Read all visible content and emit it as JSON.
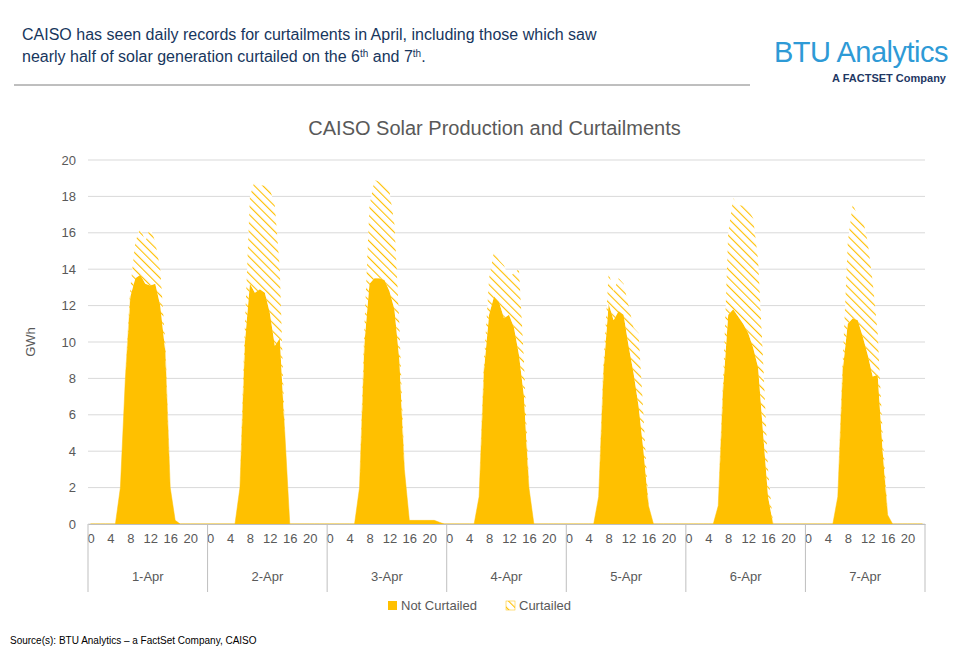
{
  "chart_data": {
    "type": "area",
    "stacked": true,
    "grid": true,
    "legend": "bottom",
    "header": [
      "CAISO has seen daily records for curtailments in April, including those which saw",
      "nearly half of solar generation curtailed on the 6th and 7th."
    ],
    "logo": {
      "text": "BTU Analytics",
      "tagline": "A FACTSET Company"
    },
    "title": "CAISO Solar Production and Curtailments",
    "y_label": "GWh",
    "source": "Source(s): BTU Analytics – a FactSet Company, CAISO",
    "ylim": [
      0,
      20
    ],
    "yticks": [
      0,
      2,
      4,
      6,
      8,
      10,
      12,
      14,
      16,
      18,
      20
    ],
    "groups": [
      "1-Apr",
      "2-Apr",
      "3-Apr",
      "4-Apr",
      "5-Apr",
      "6-Apr",
      "7-Apr"
    ],
    "categories": [
      "0",
      null,
      null,
      null,
      "4",
      null,
      null,
      null,
      "8",
      null,
      null,
      null,
      "12",
      null,
      null,
      null,
      "16",
      null,
      null,
      null,
      "20",
      null,
      null,
      null,
      "0",
      null,
      null,
      null,
      "4",
      null,
      null,
      null,
      "8",
      null,
      null,
      null,
      "12",
      null,
      null,
      null,
      "16",
      null,
      null,
      null,
      "20",
      null,
      null,
      null,
      "0",
      null,
      null,
      null,
      "4",
      null,
      null,
      null,
      "8",
      null,
      null,
      null,
      "12",
      null,
      null,
      null,
      "16",
      null,
      null,
      null,
      "20",
      null,
      null,
      null,
      "0",
      null,
      null,
      null,
      "4",
      null,
      null,
      null,
      "8",
      null,
      null,
      null,
      "12",
      null,
      null,
      null,
      "16",
      null,
      null,
      null,
      "20",
      null,
      null,
      null,
      "0",
      null,
      null,
      null,
      "4",
      null,
      null,
      null,
      "8",
      null,
      null,
      null,
      "12",
      null,
      null,
      null,
      "16",
      null,
      null,
      null,
      "20",
      null,
      null,
      null,
      "0",
      null,
      null,
      null,
      "4",
      null,
      null,
      null,
      "8",
      null,
      null,
      null,
      "12",
      null,
      null,
      null,
      "16",
      null,
      null,
      null,
      "20",
      null,
      null,
      null,
      "0",
      null,
      null,
      null,
      "4",
      null,
      null,
      null,
      "8",
      null,
      null,
      null,
      "12",
      null,
      null,
      null,
      "16",
      null,
      null,
      null,
      "20",
      null,
      null,
      null
    ],
    "series": [
      {
        "name": "Not Curtailed",
        "color": "#FFC000",
        "values": [
          0,
          0,
          0,
          0,
          0,
          0,
          2,
          8,
          12.5,
          13.5,
          13.7,
          13.2,
          13.1,
          13.2,
          12,
          9.5,
          2,
          0.2,
          0,
          0,
          0,
          0,
          0,
          0,
          0,
          0,
          0,
          0,
          0,
          0,
          2,
          10,
          13.2,
          12.7,
          12.9,
          12.7,
          11.6,
          9.8,
          10.2,
          5,
          0,
          0,
          0,
          0,
          0,
          0,
          0,
          0,
          0,
          0,
          0,
          0,
          0,
          0,
          2,
          10,
          13.2,
          13.5,
          13.5,
          13.4,
          12.8,
          11.8,
          9,
          3,
          0.2,
          0.2,
          0.2,
          0.2,
          0.2,
          0.2,
          0.1,
          0,
          0,
          0,
          0,
          0,
          0,
          0,
          1.5,
          8.5,
          11.5,
          12.5,
          12.2,
          11.3,
          11.5,
          10.8,
          9.3,
          7,
          2,
          0,
          0,
          0,
          0,
          0,
          0,
          0,
          0,
          0,
          0,
          0,
          0,
          0,
          1.5,
          8.5,
          12.1,
          11.2,
          11.7,
          11.5,
          9.8,
          8.3,
          6.5,
          4,
          1,
          0,
          0,
          0,
          0,
          0,
          0,
          0,
          0,
          0,
          0,
          0,
          0,
          0,
          1,
          7.5,
          11.5,
          11.8,
          11.4,
          11,
          10.5,
          9.7,
          8.6,
          5,
          1.5,
          0,
          0,
          0,
          0,
          0,
          0,
          0,
          0,
          0,
          0,
          0,
          0,
          0,
          1.5,
          8.5,
          11,
          11.3,
          11.2,
          10.3,
          9.3,
          8.1,
          8.2,
          4,
          0.5,
          0,
          0,
          0,
          0,
          0,
          0,
          0
        ]
      },
      {
        "name": "Curtailed",
        "color": "#FFC000",
        "values": [
          0,
          0,
          0,
          0,
          0,
          0,
          0,
          0,
          0.5,
          2,
          2.6,
          2.3,
          3.2,
          2.3,
          2,
          0.5,
          0,
          0,
          0,
          0,
          0,
          0,
          0,
          0,
          0,
          0,
          0,
          0,
          0,
          0,
          0,
          1,
          4.8,
          6.2,
          5.7,
          5.9,
          6.8,
          7.7,
          3.8,
          0,
          0,
          0,
          0,
          0,
          0,
          0,
          0,
          0,
          0,
          0,
          0,
          0,
          0,
          0,
          0,
          1,
          4.3,
          5.4,
          5.3,
          5.3,
          5.5,
          4.7,
          2,
          0,
          0,
          0,
          0,
          0,
          0,
          0,
          0,
          0,
          0,
          0,
          0,
          0,
          0,
          0,
          0,
          0.5,
          2,
          2.5,
          2.3,
          2.9,
          2,
          3,
          4.7,
          2,
          0,
          0,
          0,
          0,
          0,
          0,
          0,
          0,
          0,
          0,
          0,
          0,
          0,
          0,
          0,
          0.5,
          1.7,
          1.6,
          1.8,
          1.7,
          2.2,
          2.5,
          4,
          2,
          0,
          0,
          0,
          0,
          0,
          0,
          0,
          0,
          0,
          0,
          0,
          0,
          0,
          0,
          0,
          0.5,
          4.5,
          6.1,
          6.1,
          6.5,
          6.8,
          7.1,
          5.9,
          4,
          1.5,
          0,
          0,
          0,
          0,
          0,
          0,
          0,
          0,
          0,
          0,
          0,
          0,
          0,
          0,
          0.5,
          4.5,
          6.3,
          5.7,
          6.5,
          6.2,
          5.2,
          2.3,
          1,
          0,
          0,
          0,
          0,
          0,
          0,
          0,
          0
        ]
      }
    ]
  }
}
